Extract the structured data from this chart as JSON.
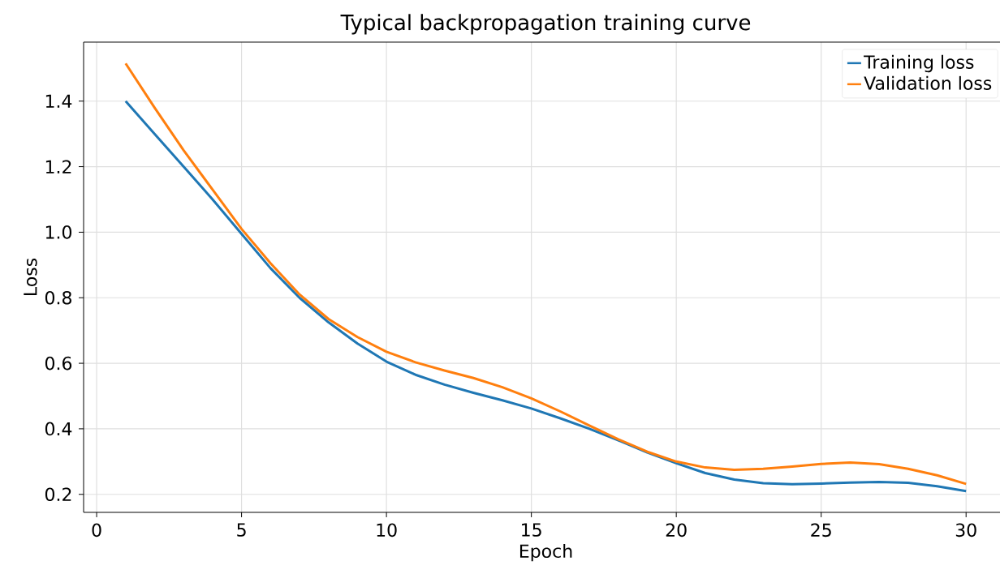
{
  "chart_data": {
    "type": "line",
    "title": "Typical backpropagation training curve",
    "xlabel": "Epoch",
    "ylabel": "Loss",
    "x": [
      1,
      2,
      3,
      4,
      5,
      6,
      7,
      8,
      9,
      10,
      11,
      12,
      13,
      14,
      15,
      16,
      17,
      18,
      19,
      20,
      21,
      22,
      23,
      24,
      25,
      26,
      27,
      28,
      29,
      30
    ],
    "series": [
      {
        "name": "Training loss",
        "color": "#1f77b4",
        "values": [
          1.4,
          1.3,
          1.2,
          1.1,
          0.995,
          0.89,
          0.8,
          0.725,
          0.66,
          0.605,
          0.565,
          0.535,
          0.51,
          0.487,
          0.462,
          0.432,
          0.4,
          0.365,
          0.328,
          0.295,
          0.265,
          0.245,
          0.234,
          0.231,
          0.233,
          0.236,
          0.238,
          0.235,
          0.225,
          0.21
        ]
      },
      {
        "name": "Validation loss",
        "color": "#ff7f0e",
        "values": [
          1.515,
          1.38,
          1.25,
          1.13,
          1.01,
          0.905,
          0.81,
          0.735,
          0.68,
          0.635,
          0.603,
          0.578,
          0.555,
          0.527,
          0.493,
          0.453,
          0.41,
          0.368,
          0.33,
          0.3,
          0.282,
          0.275,
          0.278,
          0.285,
          0.293,
          0.297,
          0.292,
          0.278,
          0.258,
          0.232
        ]
      }
    ],
    "xlim": [
      -0.45,
      31.45
    ],
    "ylim": [
      0.145,
      1.58
    ],
    "xticks": [
      0,
      5,
      10,
      15,
      20,
      25,
      30
    ],
    "yticks": [
      {
        "value": 0.2,
        "label": "0.2"
      },
      {
        "value": 0.4,
        "label": "0.4"
      },
      {
        "value": 0.6,
        "label": "0.6"
      },
      {
        "value": 0.8,
        "label": "0.8"
      },
      {
        "value": 1.0,
        "label": "1.0"
      },
      {
        "value": 1.2,
        "label": "1.2"
      },
      {
        "value": 1.4,
        "label": "1.4"
      }
    ],
    "grid": true,
    "legend": "top right",
    "marker": "none",
    "line_style": "solid"
  }
}
